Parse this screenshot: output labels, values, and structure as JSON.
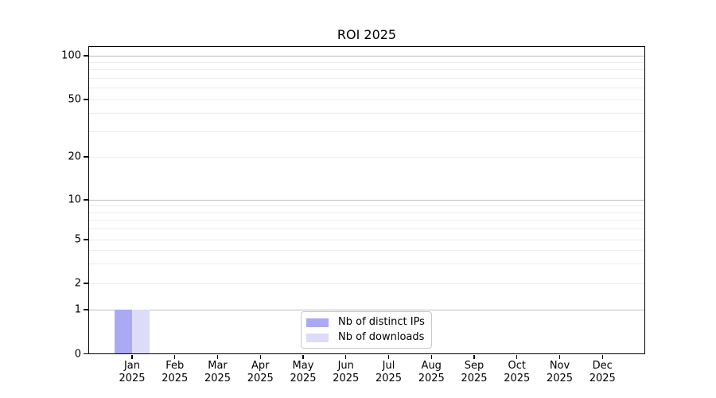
{
  "chart_data": {
    "type": "bar",
    "title": "ROI 2025",
    "year": "2025",
    "categories": [
      {
        "month": "Jan",
        "year": "2025"
      },
      {
        "month": "Feb",
        "year": "2025"
      },
      {
        "month": "Mar",
        "year": "2025"
      },
      {
        "month": "Apr",
        "year": "2025"
      },
      {
        "month": "May",
        "year": "2025"
      },
      {
        "month": "Jun",
        "year": "2025"
      },
      {
        "month": "Jul",
        "year": "2025"
      },
      {
        "month": "Aug",
        "year": "2025"
      },
      {
        "month": "Sep",
        "year": "2025"
      },
      {
        "month": "Oct",
        "year": "2025"
      },
      {
        "month": "Nov",
        "year": "2025"
      },
      {
        "month": "Dec",
        "year": "2025"
      }
    ],
    "series": [
      {
        "name": "Nb of distinct IPs",
        "color": "#a9a9f4",
        "values": [
          1,
          0,
          0,
          0,
          0,
          0,
          0,
          0,
          0,
          0,
          0,
          0
        ]
      },
      {
        "name": "Nb of downloads",
        "color": "#dcdcf8",
        "values": [
          1,
          0,
          0,
          0,
          0,
          0,
          0,
          0,
          0,
          0,
          0,
          0
        ]
      }
    ],
    "yscale": "symlog",
    "ylim": [
      0,
      115
    ],
    "y_ticks": [
      0,
      1,
      2,
      5,
      10,
      20,
      50,
      100
    ],
    "y_decade_ticks": [
      1,
      10,
      100
    ],
    "y_minor_gridlines": [
      3,
      4,
      6,
      7,
      8,
      9,
      30,
      40,
      60,
      70,
      80,
      90
    ],
    "grid": "horizontal, major + minor",
    "legend_position": "lower center inset"
  },
  "colors": {
    "background": "#ffffff",
    "spine": "#000000",
    "text": "#000000",
    "major_gridline": "#bdbdbd",
    "minor_gridline": "#ececec",
    "legend_border": "#c9c9c9"
  }
}
